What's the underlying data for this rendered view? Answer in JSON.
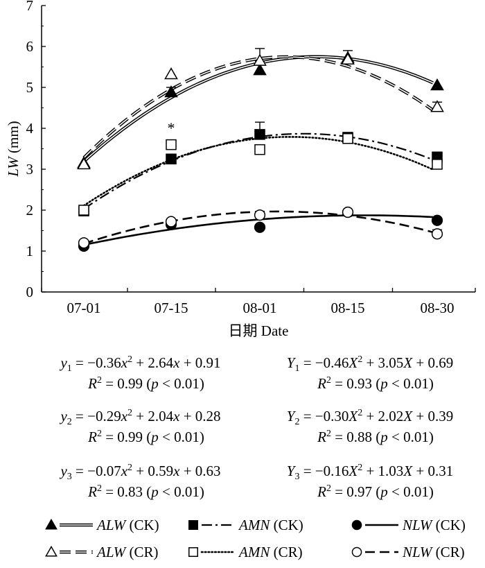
{
  "chart_data": {
    "type": "scatter",
    "xlabel": "日期 Date",
    "ylabel_var": "LW",
    "ylabel_unit": "(mm)",
    "categories": [
      "07-01",
      "07-15",
      "08-01",
      "08-15",
      "08-30"
    ],
    "ylim": [
      0,
      7
    ],
    "yticks": [
      "0",
      "1",
      "2",
      "3",
      "4",
      "5",
      "6",
      "7"
    ],
    "grid": false,
    "series": [
      {
        "name": "ALW (CK)",
        "values": [
          3.15,
          4.88,
          5.42,
          5.72,
          5.05
        ],
        "errors": [
          0,
          0.12,
          0.22,
          0.18,
          0
        ],
        "marker": "triangle-filled",
        "line": "double"
      },
      {
        "name": "ALW (CR)",
        "values": [
          3.12,
          5.32,
          5.65,
          5.68,
          4.52
        ],
        "errors": [
          0,
          0,
          0.3,
          0,
          0.12
        ],
        "marker": "triangle-open",
        "line": "dash-double"
      },
      {
        "name": "AMN (CK)",
        "values": [
          1.98,
          3.25,
          3.85,
          3.78,
          3.3
        ],
        "errors": [
          0,
          0,
          0.3,
          0,
          0
        ],
        "marker": "square-filled",
        "line": "dashdot"
      },
      {
        "name": "AMN (CR)",
        "values": [
          2.0,
          3.6,
          3.48,
          3.75,
          3.12
        ],
        "errors": [
          0,
          0,
          0,
          0,
          0
        ],
        "marker": "square-open",
        "line": "dotted"
      },
      {
        "name": "NLW (CK)",
        "values": [
          1.12,
          1.65,
          1.58,
          1.95,
          1.75
        ],
        "errors": [
          0,
          0,
          0,
          0,
          0
        ],
        "marker": "circle-filled",
        "line": "solid"
      },
      {
        "name": "NLW (CR)",
        "values": [
          1.2,
          1.72,
          1.88,
          1.95,
          1.42
        ],
        "errors": [
          0,
          0,
          0,
          0,
          0.1
        ],
        "marker": "circle-open",
        "line": "dashed"
      }
    ],
    "fits": [
      {
        "series": "ALW (CK)",
        "a": -0.36,
        "b": 2.64,
        "c": 0.91
      },
      {
        "series": "ALW (CR)",
        "a": -0.46,
        "b": 3.05,
        "c": 0.69
      },
      {
        "series": "AMN (CK)",
        "a": -0.29,
        "b": 2.04,
        "c": 0.28
      },
      {
        "series": "AMN (CR)",
        "a": -0.3,
        "b": 2.02,
        "c": 0.39
      },
      {
        "series": "NLW (CK)",
        "a": -0.07,
        "b": 0.59,
        "c": 0.63
      },
      {
        "series": "NLW (CR)",
        "a": -0.16,
        "b": 1.03,
        "c": 0.31
      }
    ],
    "annotations": [
      {
        "text": "*",
        "category": "07-15",
        "y": 4.05
      }
    ]
  },
  "equations": [
    {
      "lhs": "y",
      "sub": "1",
      "terms": [
        "−0.36",
        "x",
        "2",
        " + 2.64",
        "x",
        " + 0.91"
      ],
      "r2": "0.99",
      "p": "0.01"
    },
    {
      "lhs": "Y",
      "sub": "1",
      "terms": [
        "−0.46",
        "X",
        "2",
        " + 3.05",
        "X",
        " + 0.69"
      ],
      "r2": "0.93",
      "p": "0.01"
    },
    {
      "lhs": "y",
      "sub": "2",
      "terms": [
        "−0.29",
        "x",
        "2",
        " + 2.04",
        "x",
        " + 0.28"
      ],
      "r2": "0.99",
      "p": "0.01"
    },
    {
      "lhs": "Y",
      "sub": "2",
      "terms": [
        "−0.30",
        "X",
        "2",
        " + 2.02",
        "X",
        " + 0.39"
      ],
      "r2": "0.88",
      "p": "0.01"
    },
    {
      "lhs": "y",
      "sub": "3",
      "terms": [
        "−0.07",
        "x",
        "2",
        " + 0.59",
        "x",
        " + 0.63"
      ],
      "r2": "0.83",
      "p": "0.01"
    },
    {
      "lhs": "Y",
      "sub": "3",
      "terms": [
        "−0.16",
        "X",
        "2",
        " + 1.03",
        "X",
        " + 0.31"
      ],
      "r2": "0.97",
      "p": "0.01"
    }
  ],
  "legend": [
    {
      "var": "ALW",
      "group": "(CK)",
      "marker": "triangle-filled",
      "line": "double"
    },
    {
      "var": "AMN",
      "group": "(CK)",
      "marker": "square-filled",
      "line": "dashdot"
    },
    {
      "var": "NLW",
      "group": "(CK)",
      "marker": "circle-filled",
      "line": "solid"
    },
    {
      "var": "ALW",
      "group": "(CR)",
      "marker": "triangle-open",
      "line": "dash-double"
    },
    {
      "var": "AMN",
      "group": "(CR)",
      "marker": "square-open",
      "line": "dotted"
    },
    {
      "var": "NLW",
      "group": "(CR)",
      "marker": "circle-open",
      "line": "dashed"
    }
  ]
}
